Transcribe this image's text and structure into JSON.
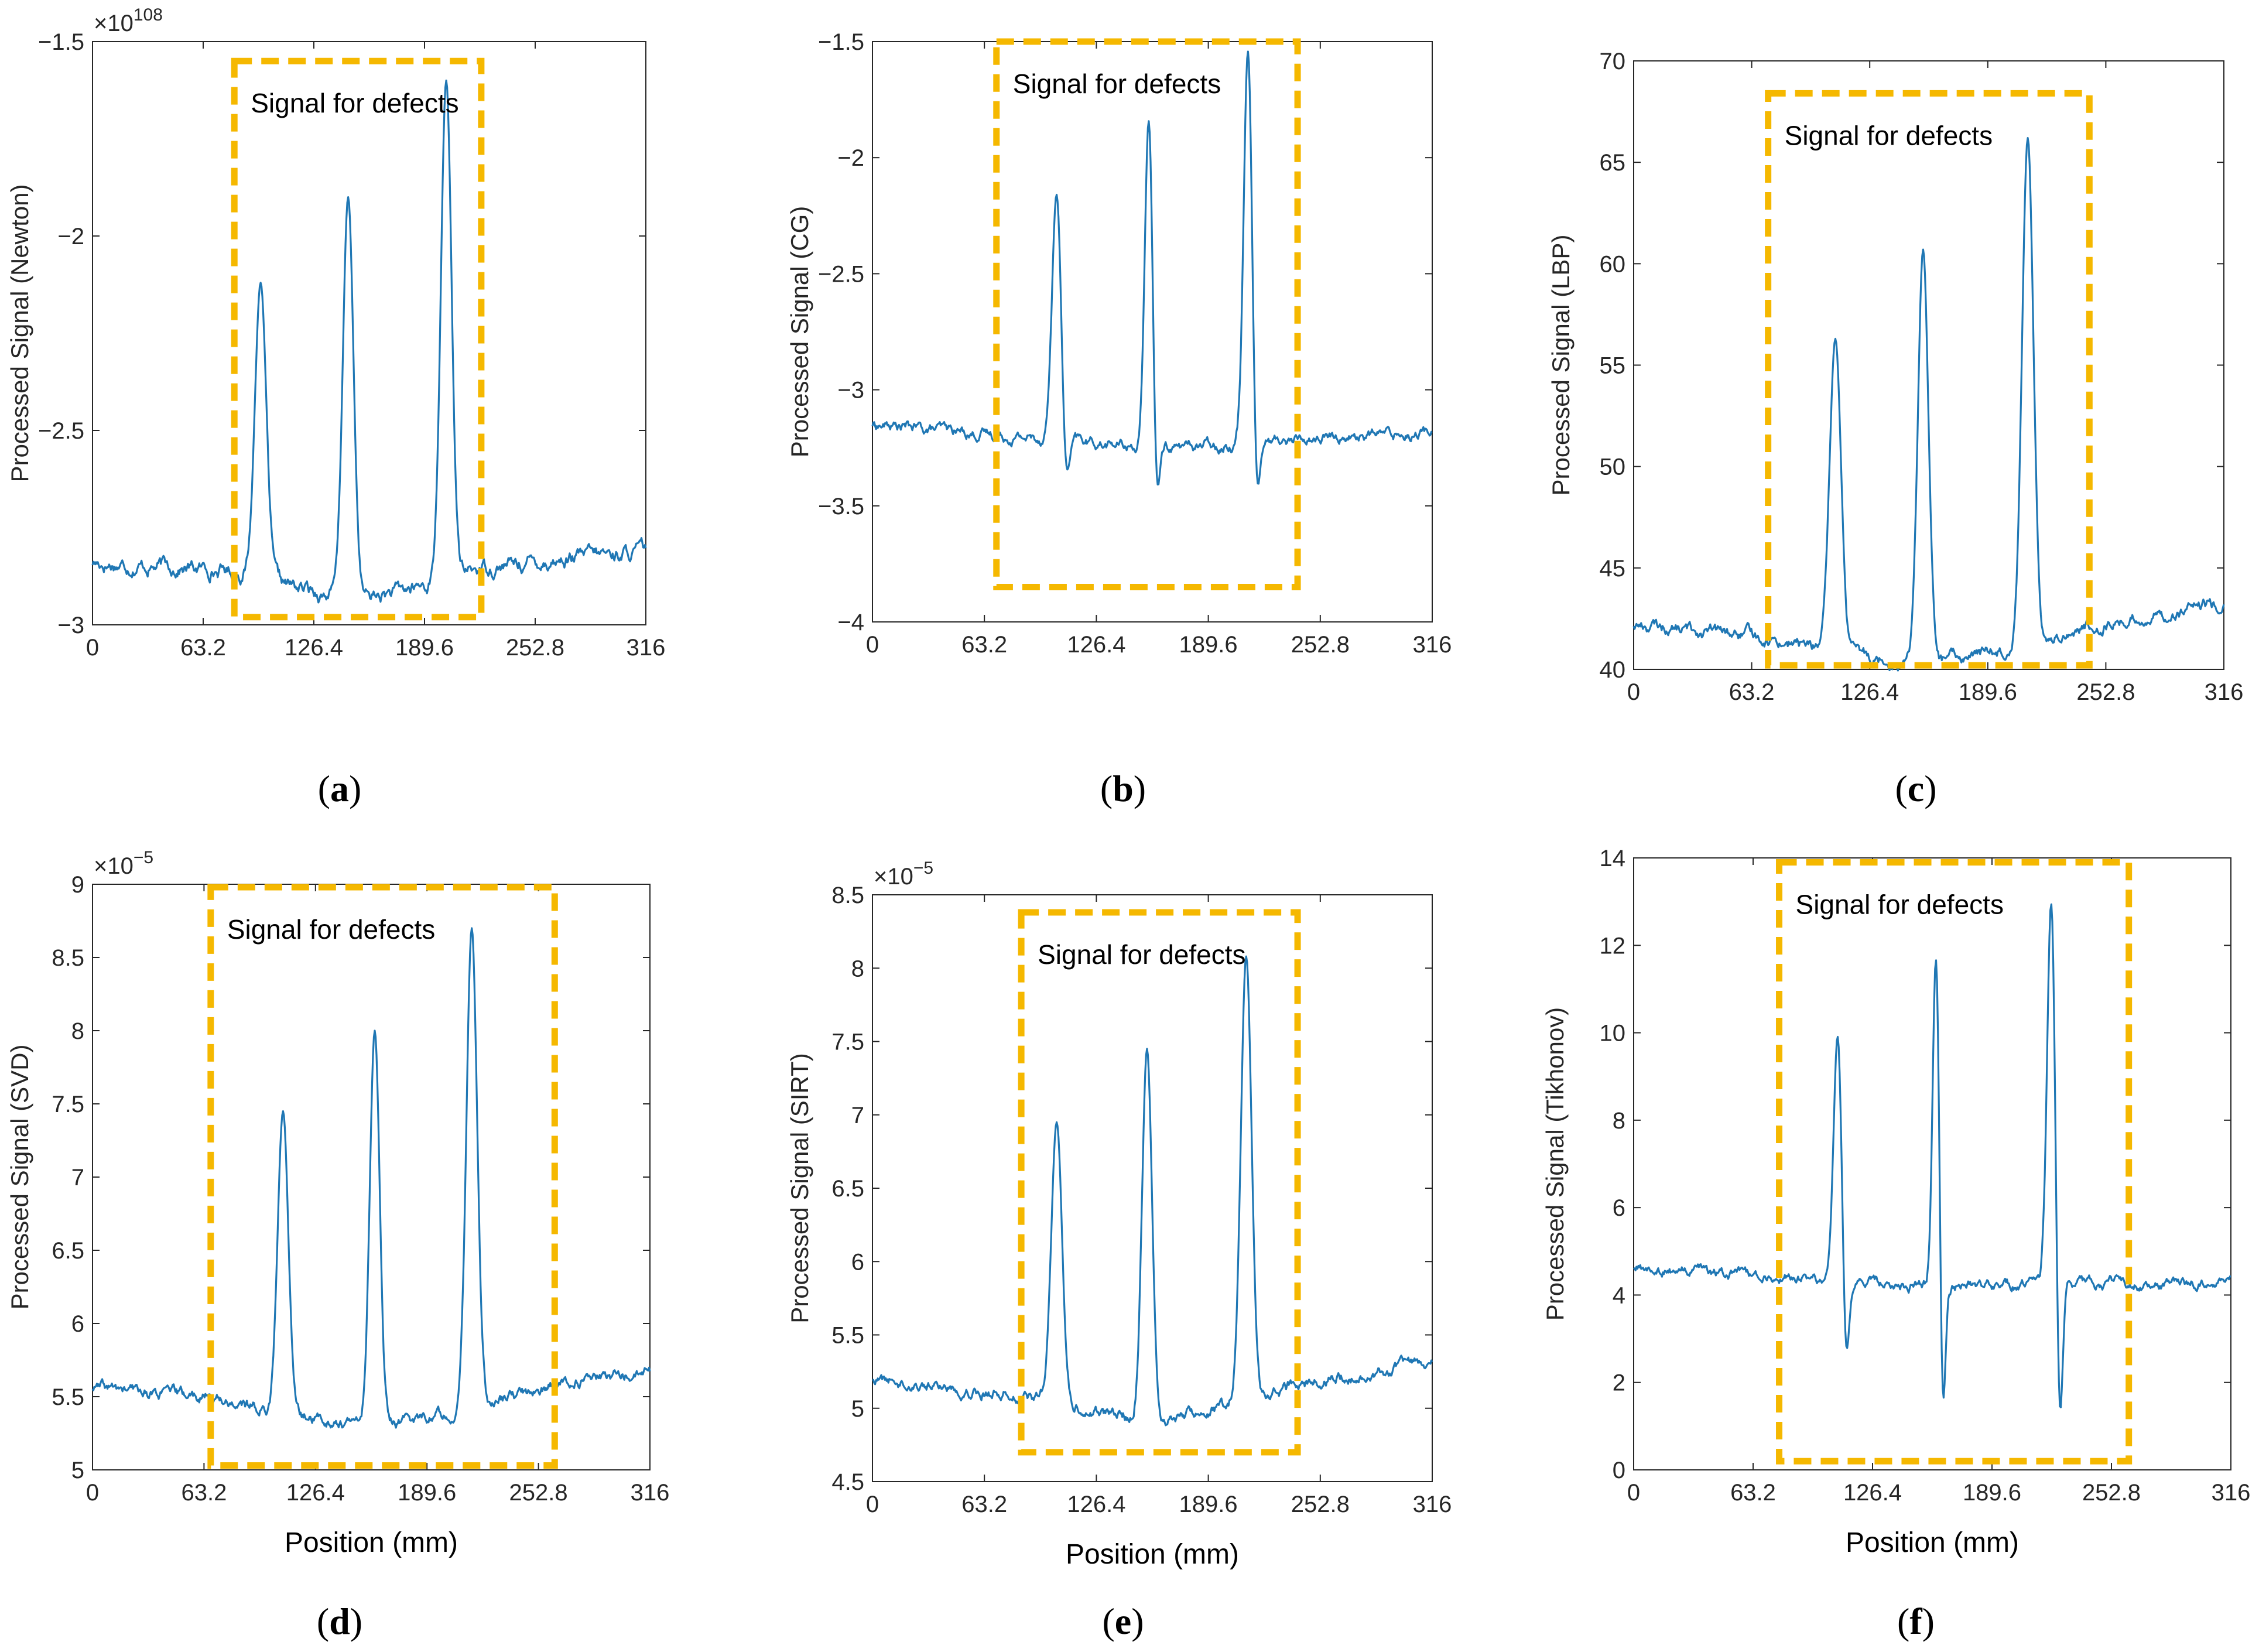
{
  "figure": {
    "colors": {
      "series": "#1f77b4",
      "defect_box": "#f5b800",
      "axis": "#262626"
    }
  },
  "chart_data": [
    {
      "panel": "(a)",
      "type": "line",
      "title": "",
      "xlabel": "",
      "ylabel": "Processed Signal (Newton)",
      "exponent": "×10",
      "exponent_power": "108",
      "xlim": [
        0,
        316
      ],
      "ylim": [
        -3,
        -1.5
      ],
      "xticks": [
        "0",
        "63.2",
        "126.4",
        "189.6",
        "252.8",
        "316"
      ],
      "yticks": [
        "-3",
        "-2.5",
        "-2",
        "-1.5"
      ],
      "grid": false,
      "annotation": {
        "text": "Signal for defects",
        "x_range": [
          81,
          222
        ],
        "y_range": [
          -2.98,
          -1.55
        ]
      },
      "baseline": {
        "start": -2.84,
        "mid": -2.88,
        "end": -2.81,
        "noise": 0.012,
        "dip": -0.05
      },
      "peaks": [
        {
          "x": 96,
          "y": -2.12,
          "width": 3.2
        },
        {
          "x": 146,
          "y": -1.9,
          "width": 3.0
        },
        {
          "x": 202,
          "y": -1.6,
          "width": 3.0
        }
      ],
      "series": [
        {
          "color": "#1f77b4",
          "x_range": [
            0,
            316
          ]
        }
      ]
    },
    {
      "panel": "(b)",
      "type": "line",
      "title": "",
      "xlabel": "",
      "ylabel": "Processed Signal (CG)",
      "exponent": "",
      "exponent_power": "",
      "xlim": [
        0,
        316
      ],
      "ylim": [
        -4,
        -1.5
      ],
      "xticks": [
        "0",
        "63.2",
        "126.4",
        "189.6",
        "252.8",
        "316"
      ],
      "yticks": [
        "-4",
        "-3.5",
        "-3",
        "-2.5",
        "-2",
        "-1.5"
      ],
      "grid": false,
      "annotation": {
        "text": "Signal for defects",
        "x_range": [
          70,
          240
        ],
        "y_range": [
          -3.85,
          -1.5
        ]
      },
      "baseline": {
        "start": -3.15,
        "mid": -3.25,
        "end": -3.18,
        "noise": 0.015,
        "dip": 0
      },
      "peaks": [
        {
          "x": 104,
          "y": -2.15,
          "width": 2.6,
          "undershoot": -3.45
        },
        {
          "x": 156,
          "y": -1.83,
          "width": 2.2,
          "undershoot": -3.55
        },
        {
          "x": 212,
          "y": -1.53,
          "width": 2.4,
          "undershoot": -3.57
        }
      ],
      "series": [
        {
          "color": "#1f77b4",
          "x_range": [
            0,
            316
          ]
        }
      ]
    },
    {
      "panel": "(c)",
      "type": "line",
      "title": "",
      "xlabel": "",
      "ylabel": "Processed Signal (LBP)",
      "exponent": "",
      "exponent_power": "",
      "xlim": [
        0,
        316
      ],
      "ylim": [
        40,
        70
      ],
      "xticks": [
        "0",
        "63.2",
        "126.4",
        "189.6",
        "252.8",
        "316"
      ],
      "yticks": [
        "40",
        "45",
        "50",
        "55",
        "60",
        "65",
        "70"
      ],
      "grid": false,
      "annotation": {
        "text": "Signal for defects",
        "x_range": [
          72,
          244
        ],
        "y_range": [
          40.2,
          68.4
        ]
      },
      "baseline": {
        "start": 42.2,
        "mid": 40.8,
        "end": 43.2,
        "noise": 0.2,
        "dip": -0.5
      },
      "peaks": [
        {
          "x": 108,
          "y": 56.3,
          "width": 3.0
        },
        {
          "x": 155,
          "y": 60.7,
          "width": 2.8
        },
        {
          "x": 211,
          "y": 66.2,
          "width": 3.0
        }
      ],
      "series": [
        {
          "color": "#1f77b4",
          "x_range": [
            0,
            316
          ]
        }
      ]
    },
    {
      "panel": "(d)",
      "type": "line",
      "title": "",
      "xlabel": "Position (mm)",
      "ylabel": "Processed Signal (SVD)",
      "exponent": "×10",
      "exponent_power": "−5",
      "xlim": [
        0,
        316
      ],
      "ylim": [
        5,
        9
      ],
      "xticks": [
        "0",
        "63.2",
        "126.4",
        "189.6",
        "252.8",
        "316"
      ],
      "yticks": [
        "5",
        "5.5",
        "6",
        "6.5",
        "7",
        "7.5",
        "8",
        "8.5",
        "9"
      ],
      "grid": false,
      "annotation": {
        "text": "Signal for defects",
        "x_range": [
          67,
          262
        ],
        "y_range": [
          5.03,
          8.98
        ]
      },
      "baseline": {
        "start": 5.56,
        "mid": 5.4,
        "end": 5.67,
        "noise": 0.025,
        "dip": -0.1
      },
      "peaks": [
        {
          "x": 108,
          "y": 7.45,
          "width": 3.0
        },
        {
          "x": 160,
          "y": 8.0,
          "width": 2.8
        },
        {
          "x": 215,
          "y": 8.7,
          "width": 3.0
        }
      ],
      "series": [
        {
          "color": "#1f77b4",
          "x_range": [
            0,
            316
          ]
        }
      ]
    },
    {
      "panel": "(e)",
      "type": "line",
      "title": "",
      "xlabel": "Position (mm)",
      "ylabel": "Processed Signal (SIRT)",
      "exponent": "×10",
      "exponent_power": "−5",
      "xlim": [
        0,
        316
      ],
      "ylim": [
        4.5,
        8.5
      ],
      "xticks": [
        "0",
        "63.2",
        "126.4",
        "189.6",
        "252.8",
        "316"
      ],
      "yticks": [
        "4.5",
        "5",
        "5.5",
        "6",
        "6.5",
        "7",
        "7.5",
        "8",
        "8.5"
      ],
      "grid": false,
      "annotation": {
        "text": "Signal for defects",
        "x_range": [
          84,
          240
        ],
        "y_range": [
          4.7,
          8.38
        ]
      },
      "baseline": {
        "start": 5.2,
        "mid": 5.0,
        "end": 5.3,
        "noise": 0.025,
        "dip": -0.08
      },
      "peaks": [
        {
          "x": 104,
          "y": 6.95,
          "width": 3.0
        },
        {
          "x": 155,
          "y": 7.45,
          "width": 2.8
        },
        {
          "x": 211,
          "y": 8.08,
          "width": 3.0
        }
      ],
      "series": [
        {
          "color": "#1f77b4",
          "x_range": [
            0,
            316
          ]
        }
      ]
    },
    {
      "panel": "(f)",
      "type": "line",
      "title": "",
      "xlabel": "Position (mm)",
      "ylabel": "Processed Signal (Tikhonov)",
      "exponent": "",
      "exponent_power": "",
      "xlim": [
        0,
        316
      ],
      "ylim": [
        0,
        14
      ],
      "xticks": [
        "0",
        "63.2",
        "126.4",
        "189.6",
        "252.8",
        "316"
      ],
      "yticks": [
        "0",
        "2",
        "4",
        "6",
        "8",
        "10",
        "12",
        "14"
      ],
      "grid": false,
      "annotation": {
        "text": "Signal for defects",
        "x_range": [
          77,
          262
        ],
        "y_range": [
          0.2,
          13.9
        ]
      },
      "baseline": {
        "start": 4.6,
        "mid": 4.2,
        "end": 4.3,
        "noise": 0.08,
        "dip": 0
      },
      "peaks": [
        {
          "x": 108,
          "y": 10.0,
          "width": 2.2,
          "undershoot": 2.1
        },
        {
          "x": 160,
          "y": 11.8,
          "width": 1.8,
          "undershoot": 0.7
        },
        {
          "x": 221,
          "y": 13.1,
          "width": 2.2,
          "undershoot": 0.3
        }
      ],
      "series": [
        {
          "color": "#1f77b4",
          "x_range": [
            0,
            316
          ]
        }
      ]
    }
  ]
}
